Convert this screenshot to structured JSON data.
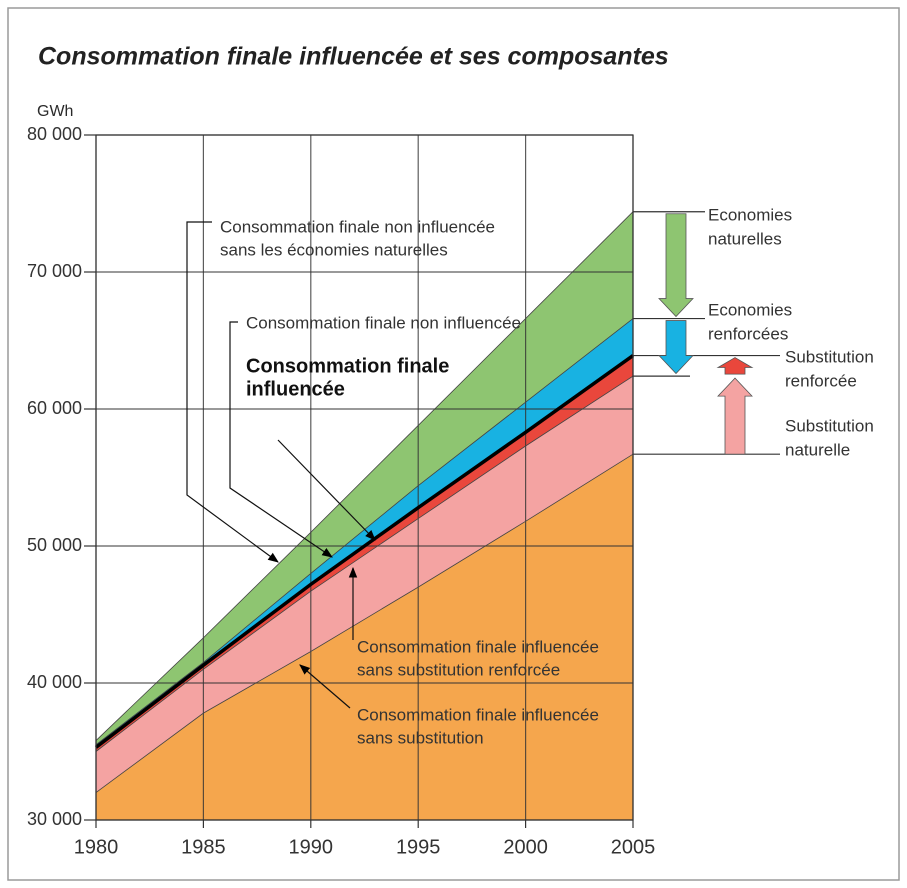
{
  "chart_data": {
    "type": "area",
    "title": "Consommation finale influencée et ses composantes",
    "y_label": "GWh",
    "x": [
      1980,
      1985,
      1990,
      1995,
      2000,
      2005
    ],
    "xlim": [
      1980,
      2005
    ],
    "xticks": [
      1980,
      1985,
      1990,
      1995,
      2000,
      2005
    ],
    "ylim": [
      30000,
      80000
    ],
    "yticks": [
      {
        "value": 30000,
        "label": "30 000"
      },
      {
        "value": 40000,
        "label": "40 000"
      },
      {
        "value": 50000,
        "label": "50 000"
      },
      {
        "value": 60000,
        "label": "60 000"
      },
      {
        "value": 70000,
        "label": "70 000"
      },
      {
        "value": 80000,
        "label": "80 000"
      }
    ],
    "grid": true,
    "series": [
      {
        "name": [
          "Consommation finale non influencée",
          "sans les économies naturelles"
        ],
        "color": "#8ec571",
        "values": [
          35800,
          43300,
          51000,
          58800,
          66600,
          74400
        ]
      },
      {
        "name": [
          "Consommation finale non influencée"
        ],
        "color": "#18b2e2",
        "values": [
          35500,
          41500,
          48000,
          54400,
          60500,
          66600
        ]
      },
      {
        "name": [
          "Consommation finale",
          "influencée"
        ],
        "color": "#e9473c",
        "emphasis": true,
        "values": [
          35300,
          41300,
          47200,
          52800,
          58300,
          63900
        ]
      },
      {
        "name": [
          "Consommation finale influencée",
          "sans substitution renforcée"
        ],
        "color": "#f4a3a2",
        "values": [
          35000,
          41000,
          46700,
          52000,
          57300,
          62400
        ]
      },
      {
        "name": [
          "Consommation finale influencée",
          "sans substitution"
        ],
        "color": "#f5a64d",
        "values": [
          32000,
          37800,
          42300,
          47000,
          51800,
          56700
        ]
      }
    ],
    "bands": [
      {
        "lines": [
          "Economies",
          "naturelles"
        ]
      },
      {
        "lines": [
          "Economies",
          "renforcées"
        ]
      },
      {
        "lines": [
          "Substitution",
          "renforcée"
        ]
      },
      {
        "lines": [
          "Substitution",
          "naturelle"
        ]
      }
    ]
  }
}
